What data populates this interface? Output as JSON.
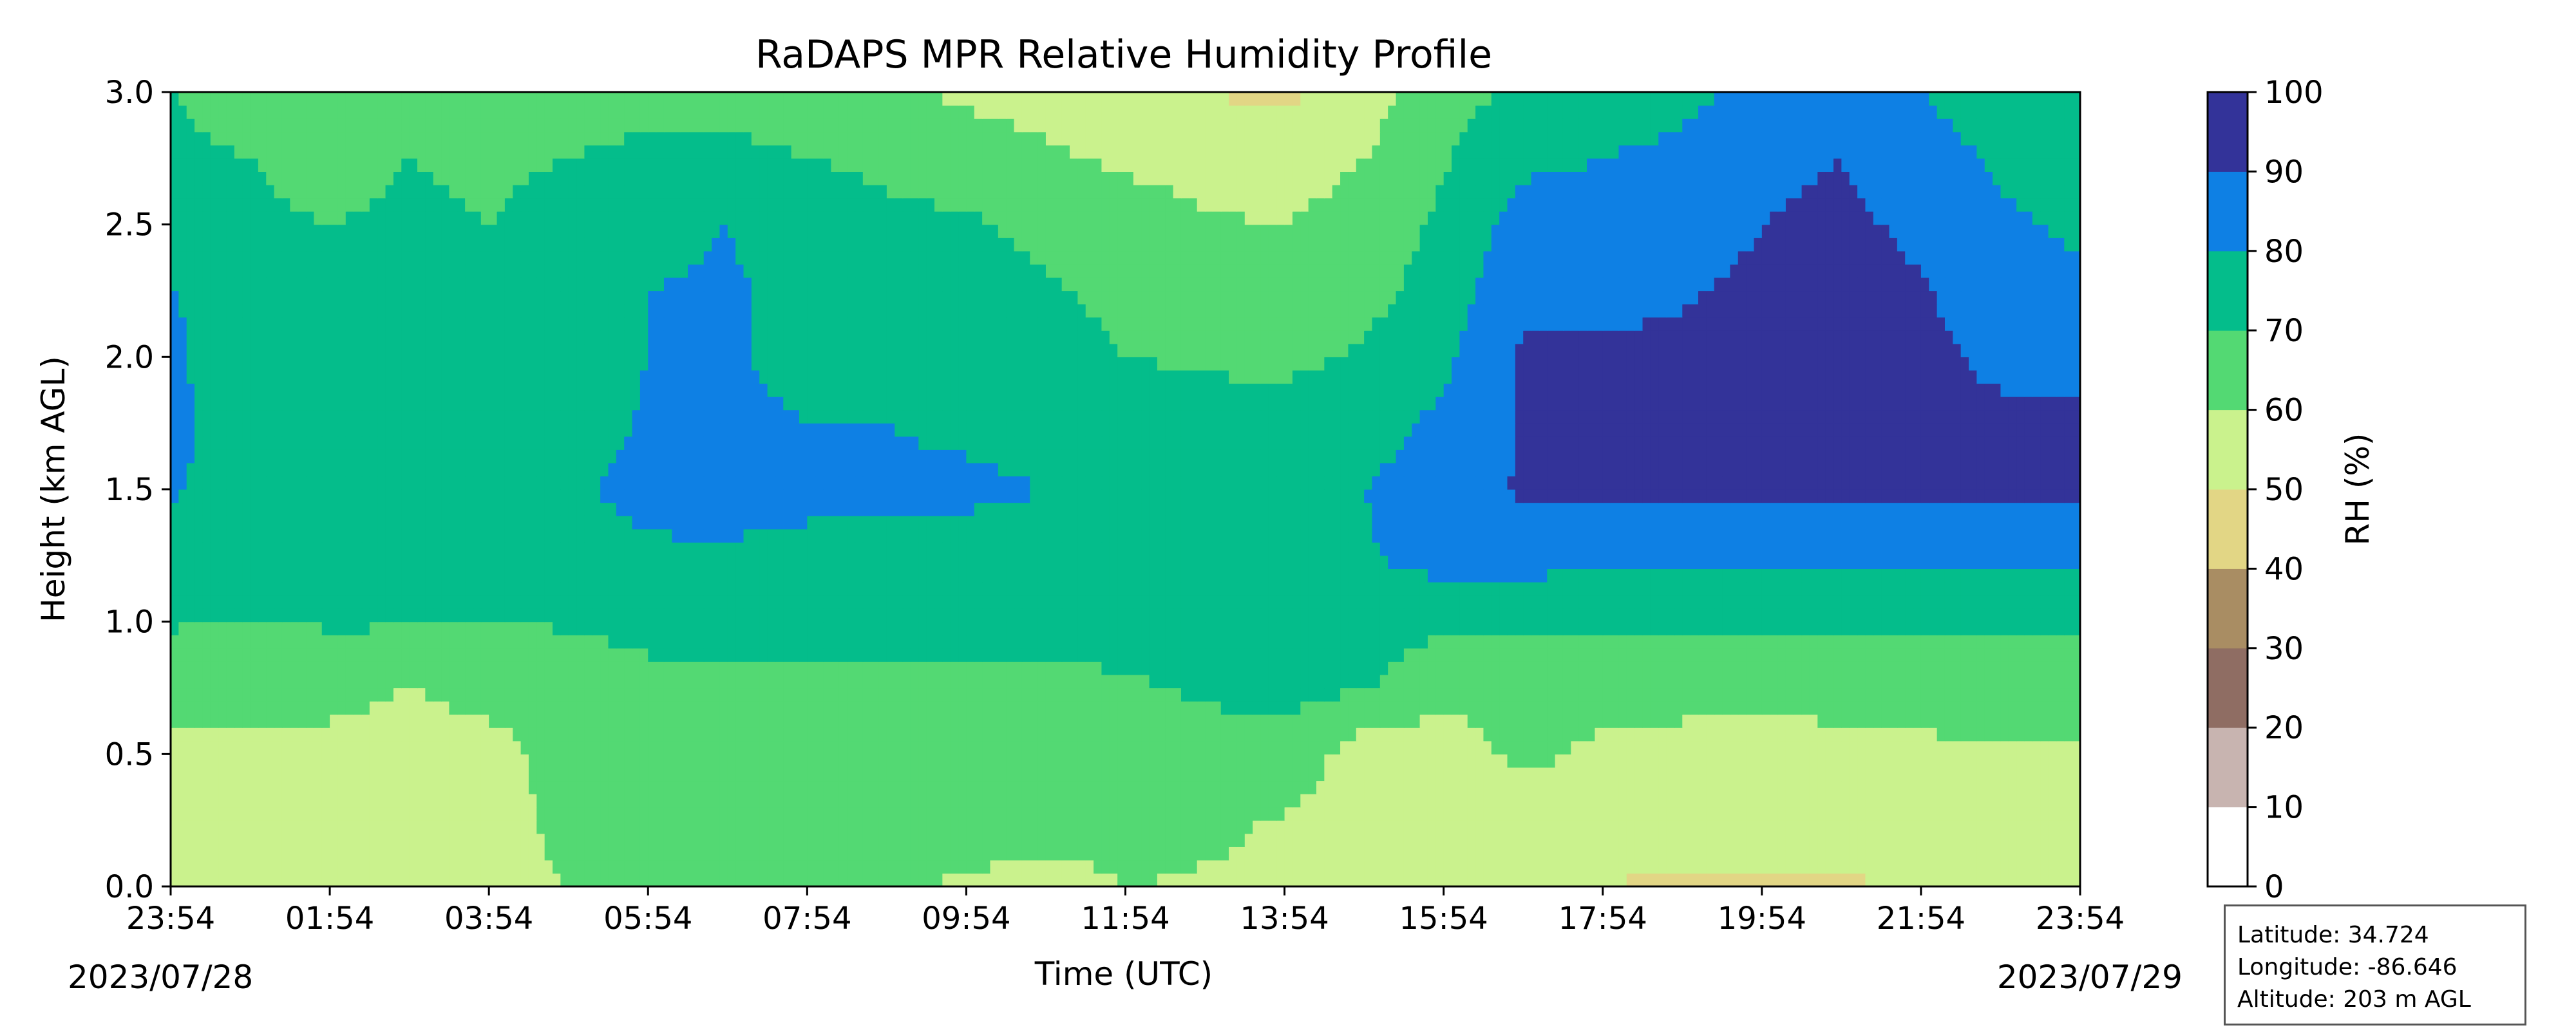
{
  "chart_data": {
    "type": "heatmap",
    "title": "RaDAPS MPR Relative Humidity Profile",
    "xlabel": "Time (UTC)",
    "ylabel": "Height (km AGL)",
    "xticks": [
      "23:54",
      "01:54",
      "03:54",
      "05:54",
      "07:54",
      "09:54",
      "11:54",
      "13:54",
      "15:54",
      "17:54",
      "19:54",
      "21:54",
      "23:54"
    ],
    "xrange": [
      "2023-07-28 23:54",
      "2023-07-29 23:54"
    ],
    "start_date": "2023/07/28",
    "end_date": "2023/07/29",
    "yticks": [
      "0.0",
      "0.5",
      "1.0",
      "1.5",
      "2.0",
      "2.5",
      "3.0"
    ],
    "ylim": [
      0,
      3
    ],
    "colorbar": {
      "label": "RH (%)",
      "ticks": [
        "0",
        "10",
        "20",
        "30",
        "40",
        "50",
        "60",
        "70",
        "80",
        "90",
        "100"
      ],
      "levels": [
        0,
        10,
        20,
        30,
        40,
        50,
        60,
        70,
        80,
        90,
        100
      ],
      "colors": [
        "#ffffff",
        "#c8b4b0",
        "#8f6d63",
        "#a98d63",
        "#e2d685",
        "#caf28d",
        "#53d973",
        "#04bd8b",
        "#0e80e4",
        "#333399"
      ]
    },
    "rh_grid": {
      "times_h": [
        0,
        1,
        2,
        3,
        4,
        5,
        6,
        7,
        8,
        9,
        10,
        11,
        12,
        13,
        14,
        15,
        16,
        17,
        18,
        19,
        20,
        21,
        22,
        23,
        24
      ],
      "heights_km": [
        0.0,
        0.25,
        0.5,
        0.75,
        1.0,
        1.25,
        1.5,
        1.75,
        2.0,
        2.25,
        2.5,
        2.75,
        3.0
      ],
      "rh_percent": [
        [
          58,
          57,
          55,
          54,
          55,
          60,
          62,
          68,
          68,
          62,
          58,
          55,
          60,
          59,
          58,
          57,
          55,
          52,
          50,
          48,
          48,
          48,
          52,
          55,
          55
        ],
        [
          58,
          58,
          58,
          56,
          56,
          63,
          64,
          65,
          66,
          66,
          67,
          66,
          64,
          62,
          59,
          54,
          53,
          55,
          56,
          56,
          56,
          56,
          57,
          58,
          58
        ],
        [
          58,
          59,
          58,
          57,
          58,
          62,
          63,
          64,
          64,
          64,
          65,
          65,
          66,
          67,
          68,
          54,
          56,
          62,
          58,
          57,
          56,
          58,
          58,
          59,
          59
        ],
        [
          62,
          61,
          62,
          60,
          62,
          63,
          66,
          68,
          68,
          69,
          68,
          68,
          69,
          71,
          72,
          71,
          62,
          62,
          64,
          63,
          62,
          63,
          64,
          65,
          65
        ],
        [
          71,
          70,
          71,
          71,
          70,
          71,
          74,
          73,
          72,
          72,
          72,
          73,
          73,
          74,
          75,
          76,
          72,
          72,
          72,
          72,
          72,
          72,
          72,
          72,
          72
        ],
        [
          74,
          73,
          74,
          73,
          74,
          76,
          79,
          79,
          78,
          78,
          78,
          78,
          77,
          77,
          78,
          79,
          84,
          84,
          82,
          82,
          81,
          82,
          82,
          82,
          82
        ],
        [
          81,
          75,
          76,
          75,
          76,
          79,
          82,
          83,
          82,
          81,
          81,
          80,
          79,
          79,
          79,
          80,
          85,
          91,
          91,
          91,
          92,
          92,
          91,
          91,
          91
        ],
        [
          82,
          76,
          74,
          73,
          74,
          76,
          81,
          82,
          80,
          80,
          79,
          78,
          77,
          75,
          74,
          76,
          82,
          91,
          92,
          92,
          93,
          93,
          92,
          92,
          92
        ],
        [
          82,
          73,
          72,
          72,
          72,
          74,
          80,
          81,
          77,
          76,
          75,
          73,
          70,
          68,
          68,
          71,
          78,
          91,
          91,
          92,
          93,
          93,
          92,
          88,
          86
        ],
        [
          81,
          72,
          71,
          72,
          72,
          73,
          80,
          81,
          78,
          75,
          73,
          71,
          68,
          65,
          66,
          67,
          74,
          89,
          88,
          89,
          92,
          93,
          91,
          85,
          82
        ],
        [
          74,
          71,
          70,
          71,
          70,
          72,
          78,
          80,
          76,
          72,
          71,
          68,
          66,
          61,
          60,
          64,
          72,
          84,
          84,
          85,
          90,
          92,
          88,
          82,
          78
        ],
        [
          72,
          70,
          68,
          70,
          69,
          70,
          74,
          73,
          70,
          68,
          66,
          62,
          58,
          56,
          55,
          60,
          69,
          78,
          80,
          82,
          88,
          90,
          85,
          78,
          75
        ],
        [
          70,
          66,
          65,
          64,
          63,
          62,
          64,
          65,
          64,
          62,
          58,
          55,
          52,
          50,
          48,
          55,
          66,
          72,
          75,
          78,
          82,
          84,
          80,
          74,
          72
        ]
      ]
    }
  },
  "info_box": {
    "latitude": "Latitude: 34.724",
    "longitude": "Longitude: -86.646",
    "altitude": "Altitude: 203 m AGL"
  }
}
